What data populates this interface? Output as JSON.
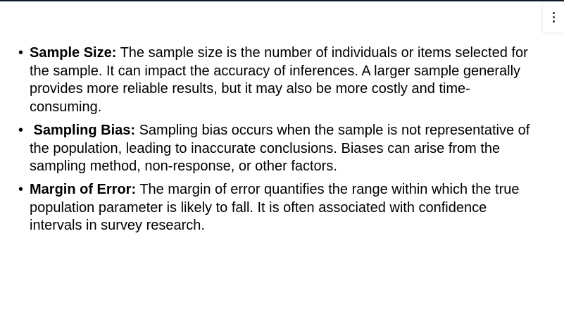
{
  "menu": {
    "icon": "more-vertical-icon"
  },
  "bullets": [
    {
      "term": "Sample Size:",
      "text": " The sample size is the number of individuals or items selected for the sample. It can impact the accuracy of inferences. A larger sample generally provides more reliable results, but it may also be more costly and time-consuming."
    },
    {
      "term": " Sampling Bias:",
      "text": " Sampling bias occurs when the sample is not representative of the population, leading to inaccurate conclusions. Biases can arise from the sampling method, non-response, or other factors."
    },
    {
      "term": "Margin of Error:",
      "text": " The margin of error quantifies the range within which the true population parameter is likely to fall. It is often associated with confidence intervals in survey research."
    }
  ]
}
